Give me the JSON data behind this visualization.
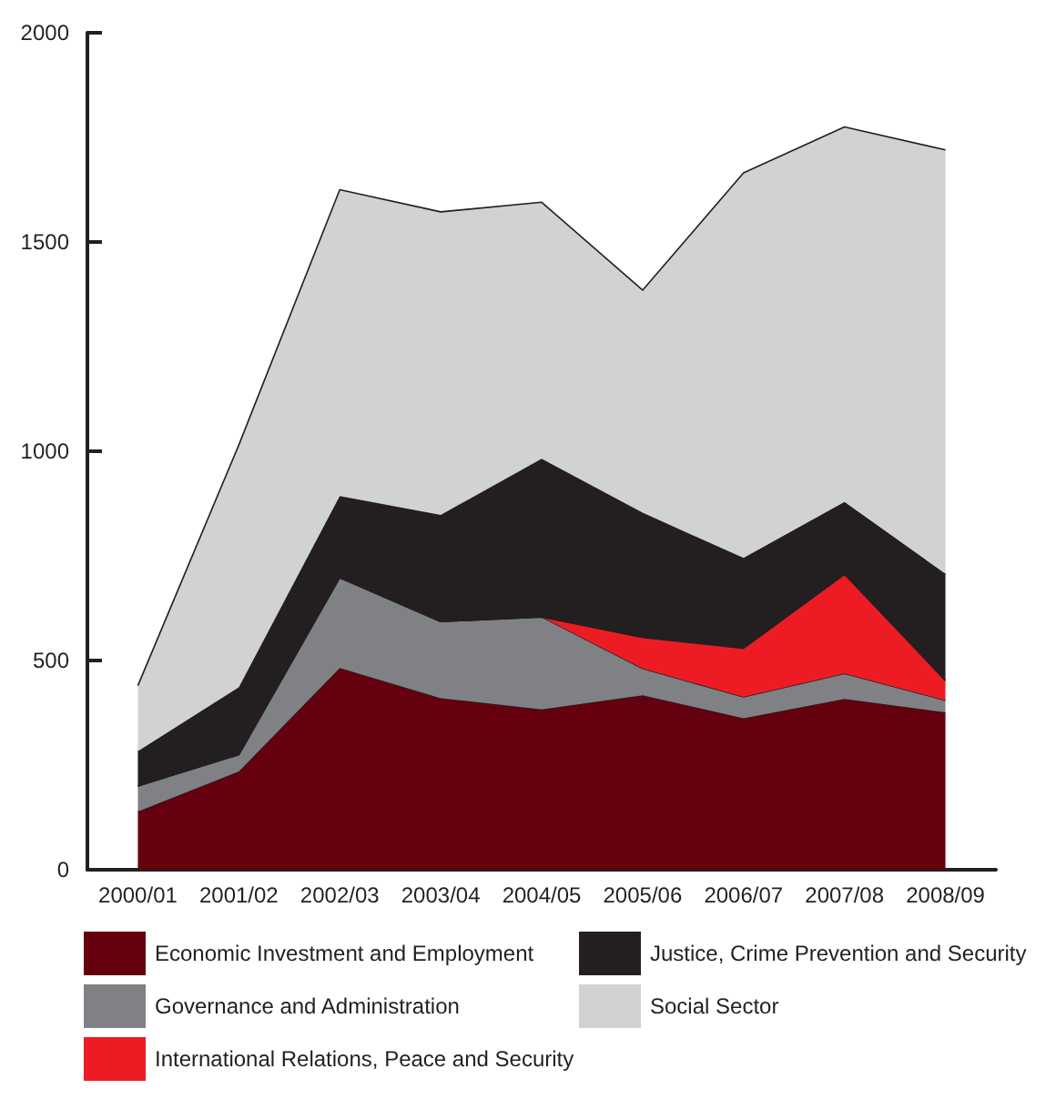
{
  "chart_data": {
    "type": "area",
    "stacked": true,
    "categories": [
      "2000/01",
      "2001/02",
      "2002/03",
      "2003/04",
      "2004/05",
      "2005/06",
      "2006/07",
      "2007/08",
      "2008/09"
    ],
    "series": [
      {
        "name": "Economic Investment and Employment",
        "color": "#65000f",
        "values": [
          139,
          235,
          482,
          410,
          383,
          417,
          362,
          408,
          376
        ]
      },
      {
        "name": "Governance and Administration",
        "color": "#808184",
        "values": [
          61,
          40,
          216,
          183,
          221,
          64,
          51,
          61,
          29
        ]
      },
      {
        "name": "International Relations, Peace and Security",
        "color": "#ed1c24",
        "values": [
          0,
          0,
          0,
          0,
          0,
          74,
          116,
          237,
          47
        ]
      },
      {
        "name": "Justice, Crime Prevention and Security",
        "color": "#231f20",
        "values": [
          83,
          161,
          195,
          255,
          378,
          298,
          216,
          173,
          255
        ]
      },
      {
        "name": "Social Sector",
        "color": "#d1d2d4",
        "values": [
          157,
          579,
          732,
          724,
          613,
          532,
          920,
          896,
          1013
        ]
      }
    ],
    "ylim": [
      0,
      2000
    ],
    "yticks": [
      0,
      500,
      1000,
      1500,
      2000
    ],
    "grid": false,
    "legend": "bottom"
  }
}
